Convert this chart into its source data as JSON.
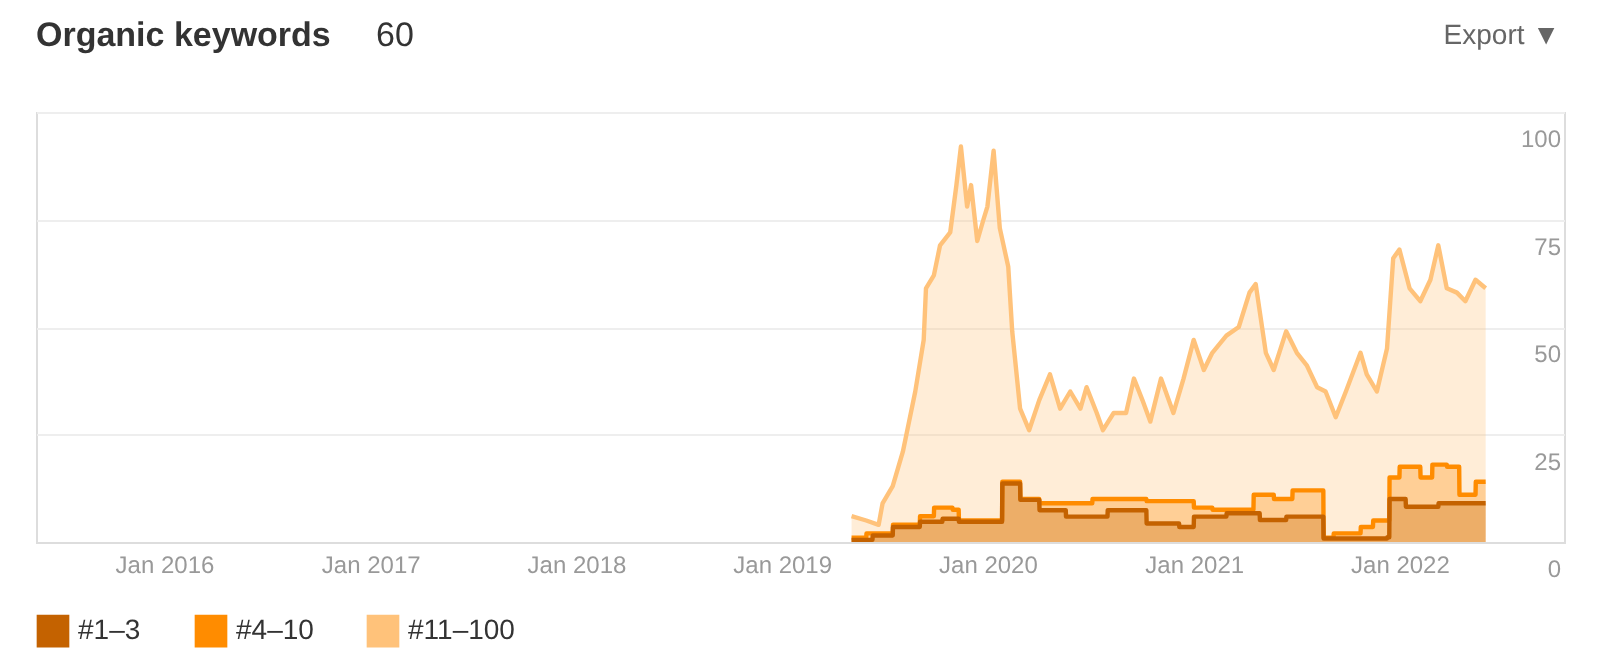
{
  "chart_data": {
    "type": "area",
    "title": "Organic keywords",
    "annotations": [
      "60",
      "Export ▼"
    ],
    "xlim": [
      "2015-05-19",
      "2022-10-20"
    ],
    "xticks": [
      {
        "value": "2016-01-01",
        "label": "Jan 2016"
      },
      {
        "value": "2017-01-01",
        "label": "Jan 2017"
      },
      {
        "value": "2018-01-01",
        "label": "Jan 2018"
      },
      {
        "value": "2019-01-01",
        "label": "Jan 2019"
      },
      {
        "value": "2020-01-01",
        "label": "Jan 2020"
      },
      {
        "value": "2021-01-01",
        "label": "Jan 2021"
      },
      {
        "value": "2022-01-01",
        "label": "Jan 2022"
      }
    ],
    "ylim": [
      0,
      100
    ],
    "yticks": [
      0,
      25,
      50,
      75,
      100
    ],
    "grid": "y",
    "legend": "bottom left",
    "series": [
      {
        "name": "#1–3",
        "color": "#c46200",
        "x": [
          "2019-05-05",
          "2019-06-11",
          "2019-06-11T12:00",
          "2019-07-17",
          "2019-07-17T12:00",
          "2019-09-03",
          "2019-09-03T12:00",
          "2019-10-13",
          "2019-10-13T12:00",
          "2019-11-11",
          "2019-11-11T12:00",
          "2020-01-27",
          "2020-01-27T12:00",
          "2020-02-28",
          "2020-02-28T12:00",
          "2020-04-02",
          "2020-04-02T12:00",
          "2020-05-19",
          "2020-05-19T12:00",
          "2020-08-01",
          "2020-08-01T12:00",
          "2020-10-09",
          "2020-10-09T12:00",
          "2020-12-06",
          "2020-12-06T12:00",
          "2021-01-01",
          "2021-01-01T12:00",
          "2021-02-28",
          "2021-02-28T12:00",
          "2021-04-28",
          "2021-04-28T12:00",
          "2021-06-14",
          "2021-06-14T12:00",
          "2021-08-19",
          "2021-08-19T12:00",
          "2021-12-10",
          "2021-12-10T12:00",
          "2021-12-14",
          "2021-12-14T12:00",
          "2022-01-12",
          "2022-01-12T12:00",
          "2022-03-11",
          "2022-03-11T12:00",
          "2022-06-03"
        ],
        "values": [
          0.5,
          0.5,
          1.5,
          1.5,
          3.5,
          3.5,
          4.7,
          4.7,
          5.4,
          5.4,
          4.7,
          4.7,
          13.6,
          13.6,
          9.8,
          9.8,
          7.4,
          7.4,
          5.9,
          5.9,
          7.4,
          7.4,
          4.3,
          4.3,
          3.5,
          3.5,
          5.9,
          5.9,
          6.7,
          6.7,
          5.1,
          5.1,
          5.9,
          5.9,
          0.8,
          0.8,
          1.1,
          1.1,
          10,
          10,
          8.2,
          8.2,
          9,
          9
        ]
      },
      {
        "name": "#4–10",
        "color": "#ff8c00",
        "x": [
          "2019-05-05",
          "2019-05-31",
          "2019-05-31T12:00",
          "2019-07-17",
          "2019-07-17T12:00",
          "2019-09-03",
          "2019-09-03T12:00",
          "2019-09-28",
          "2019-09-28T12:00",
          "2019-10-31",
          "2019-10-31T12:00",
          "2019-11-11",
          "2019-11-11T12:00",
          "2020-01-27",
          "2020-01-27T12:00",
          "2020-02-28",
          "2020-02-28T12:00",
          "2020-04-02",
          "2020-04-02T12:00",
          "2020-07-05",
          "2020-07-05T12:00",
          "2020-10-09",
          "2020-10-09T12:00",
          "2021-01-01",
          "2021-01-01T12:00",
          "2021-02-03",
          "2021-02-03T12:00",
          "2021-04-17",
          "2021-04-17T12:00",
          "2021-05-23",
          "2021-05-23T12:00",
          "2021-06-25",
          "2021-06-25T12:00",
          "2021-08-19",
          "2021-08-19T12:00",
          "2021-09-06",
          "2021-09-06T12:00",
          "2021-10-24",
          "2021-10-24T12:00",
          "2021-11-15",
          "2021-11-15T12:00",
          "2021-12-14",
          "2021-12-14T12:00",
          "2022-01-01",
          "2022-01-01T12:00",
          "2022-02-07",
          "2022-02-07T12:00",
          "2022-02-28",
          "2022-02-28T12:00",
          "2022-03-26",
          "2022-03-26T12:00",
          "2022-04-17",
          "2022-04-17T12:00",
          "2022-05-16",
          "2022-05-16T12:00",
          "2022-06-03"
        ],
        "values": [
          1,
          1,
          2,
          2,
          4,
          4,
          6,
          6,
          8,
          8,
          7.5,
          7.5,
          5,
          5,
          14,
          14,
          10,
          10,
          9,
          9,
          10,
          10,
          9.5,
          9.5,
          8,
          8,
          7.5,
          7.5,
          11,
          11,
          10,
          10,
          12,
          12,
          1,
          1,
          2,
          2,
          3.5,
          3.5,
          5,
          5,
          15,
          15,
          17.5,
          17.5,
          15,
          15,
          18,
          18,
          17.5,
          17.5,
          11,
          11,
          14,
          14
        ]
      },
      {
        "name": "#11–100",
        "color": "#ffc27a",
        "x": [
          "2019-05-05",
          "2019-05-31",
          "2019-06-22",
          "2019-06-29",
          "2019-07-17",
          "2019-08-04",
          "2019-08-15",
          "2019-08-26",
          "2019-09-10",
          "2019-09-14",
          "2019-09-28",
          "2019-10-09",
          "2019-10-27",
          "2019-11-07",
          "2019-11-15",
          "2019-11-26",
          "2019-12-03",
          "2019-12-14",
          "2019-12-25",
          "2020-01-01",
          "2020-01-12",
          "2020-01-23",
          "2020-02-07",
          "2020-02-14",
          "2020-02-28",
          "2020-03-15",
          "2020-04-02",
          "2020-04-21",
          "2020-05-09",
          "2020-05-27",
          "2020-06-14",
          "2020-06-25",
          "2020-07-13",
          "2020-07-24",
          "2020-08-12",
          "2020-09-03",
          "2020-09-17",
          "2020-10-02",
          "2020-10-16",
          "2020-11-04",
          "2020-11-26",
          "2020-12-14",
          "2021-01-01",
          "2021-01-19",
          "2021-02-03",
          "2021-02-28",
          "2021-03-22",
          "2021-04-10",
          "2021-04-21",
          "2021-05-09",
          "2021-05-23",
          "2021-06-14",
          "2021-07-03",
          "2021-07-21",
          "2021-08-08",
          "2021-08-23",
          "2021-09-10",
          "2021-09-28",
          "2021-10-24",
          "2021-11-04",
          "2021-11-22",
          "2021-12-10",
          "2021-12-21",
          "2022-01-01",
          "2022-01-19",
          "2022-02-07",
          "2022-02-25",
          "2022-03-11",
          "2022-03-26",
          "2022-04-13",
          "2022-04-28",
          "2022-05-16",
          "2022-06-03"
        ],
        "values": [
          6,
          5,
          4,
          9,
          13,
          21,
          28,
          35,
          47,
          59,
          62,
          69,
          72,
          83,
          92,
          78,
          83,
          70,
          75,
          78,
          91,
          73,
          64,
          49,
          31,
          26,
          33,
          39,
          31,
          35,
          31,
          36,
          30,
          26,
          30,
          30,
          38,
          33,
          28,
          38,
          30,
          38,
          47,
          40,
          44,
          48,
          50,
          58,
          60,
          44,
          40,
          49,
          44,
          41,
          36,
          35,
          29,
          35,
          44,
          39,
          35,
          45,
          66,
          68,
          59,
          56,
          61,
          69,
          59,
          58,
          56,
          61,
          59
        ]
      }
    ]
  }
}
